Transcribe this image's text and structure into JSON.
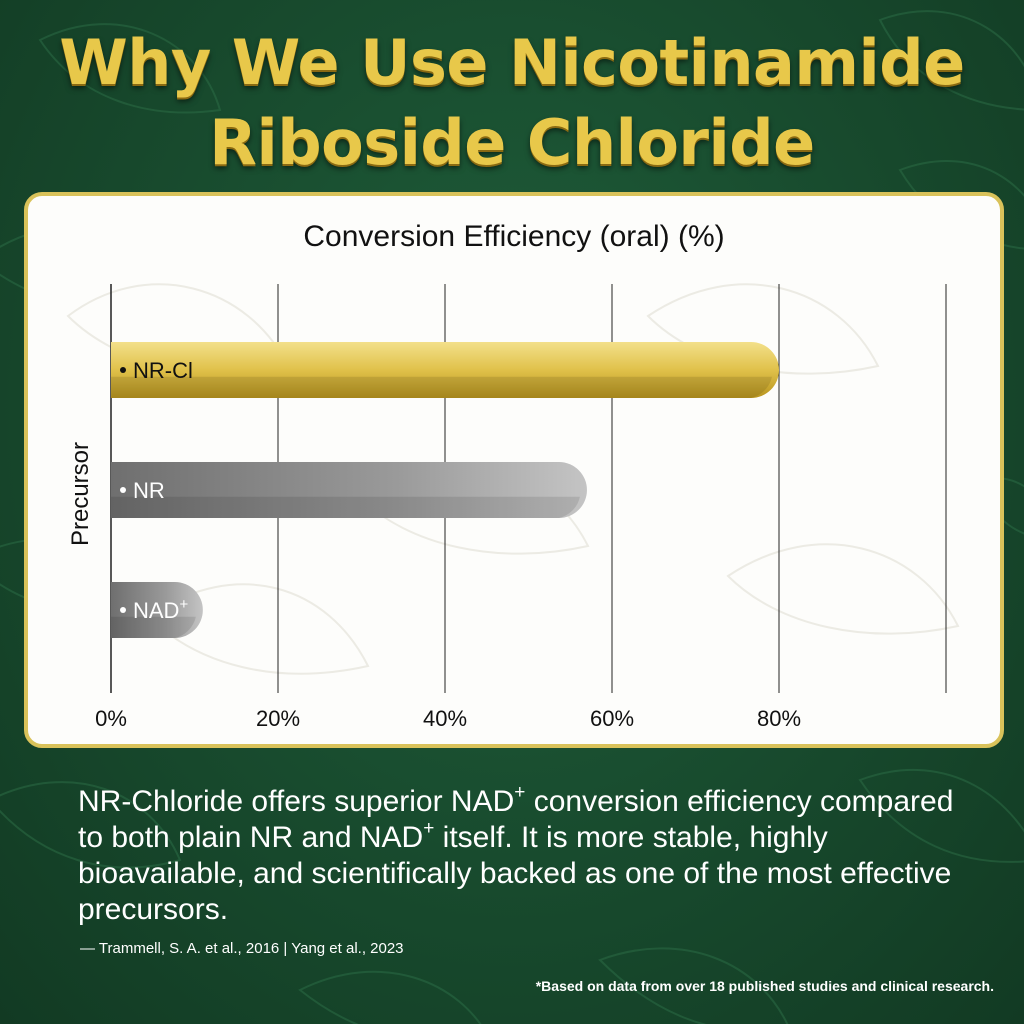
{
  "headline": {
    "line1": "Why We Use Nicotinamide",
    "line2": "Riboside Chloride"
  },
  "caption": {
    "part1": "NR-Chloride offers superior NAD",
    "sup1": "+",
    "part2": " conversion efficiency compared to both plain NR and NAD",
    "sup2": "+",
    "part3": " itself. It is more stable, highly bioavailable, and scientifically backed as one of the most effective precursors."
  },
  "source": "— Trammell, S. A. et al., 2016 | Yang et al., 2023",
  "footnote": "*Based on data from over 18 published studies and clinical research.",
  "colors": {
    "background": "#17482c",
    "headline_gold": "#e8c84a",
    "card_border": "#d9c25a",
    "nrcl_bar": "#e0c14a",
    "nr_bar": "#8a8a8a",
    "nad_bar": "#9a9a9a"
  },
  "chart_data": {
    "type": "bar",
    "orientation": "horizontal",
    "title": "Conversion Efficiency (oral) (%)",
    "xlabel": "",
    "ylabel": "Precursor",
    "categories": [
      "NR-Cl",
      "NR",
      "NAD+"
    ],
    "values": [
      80,
      57,
      11
    ],
    "xlim": [
      0,
      100
    ],
    "xticks": [
      0,
      20,
      40,
      60,
      80
    ],
    "xtick_labels": [
      "0%",
      "20%",
      "40%",
      "60%",
      "80%"
    ],
    "grid": true,
    "bar_colors": [
      "#e0c14a",
      "#8a8a8a",
      "#9a9a9a"
    ]
  }
}
